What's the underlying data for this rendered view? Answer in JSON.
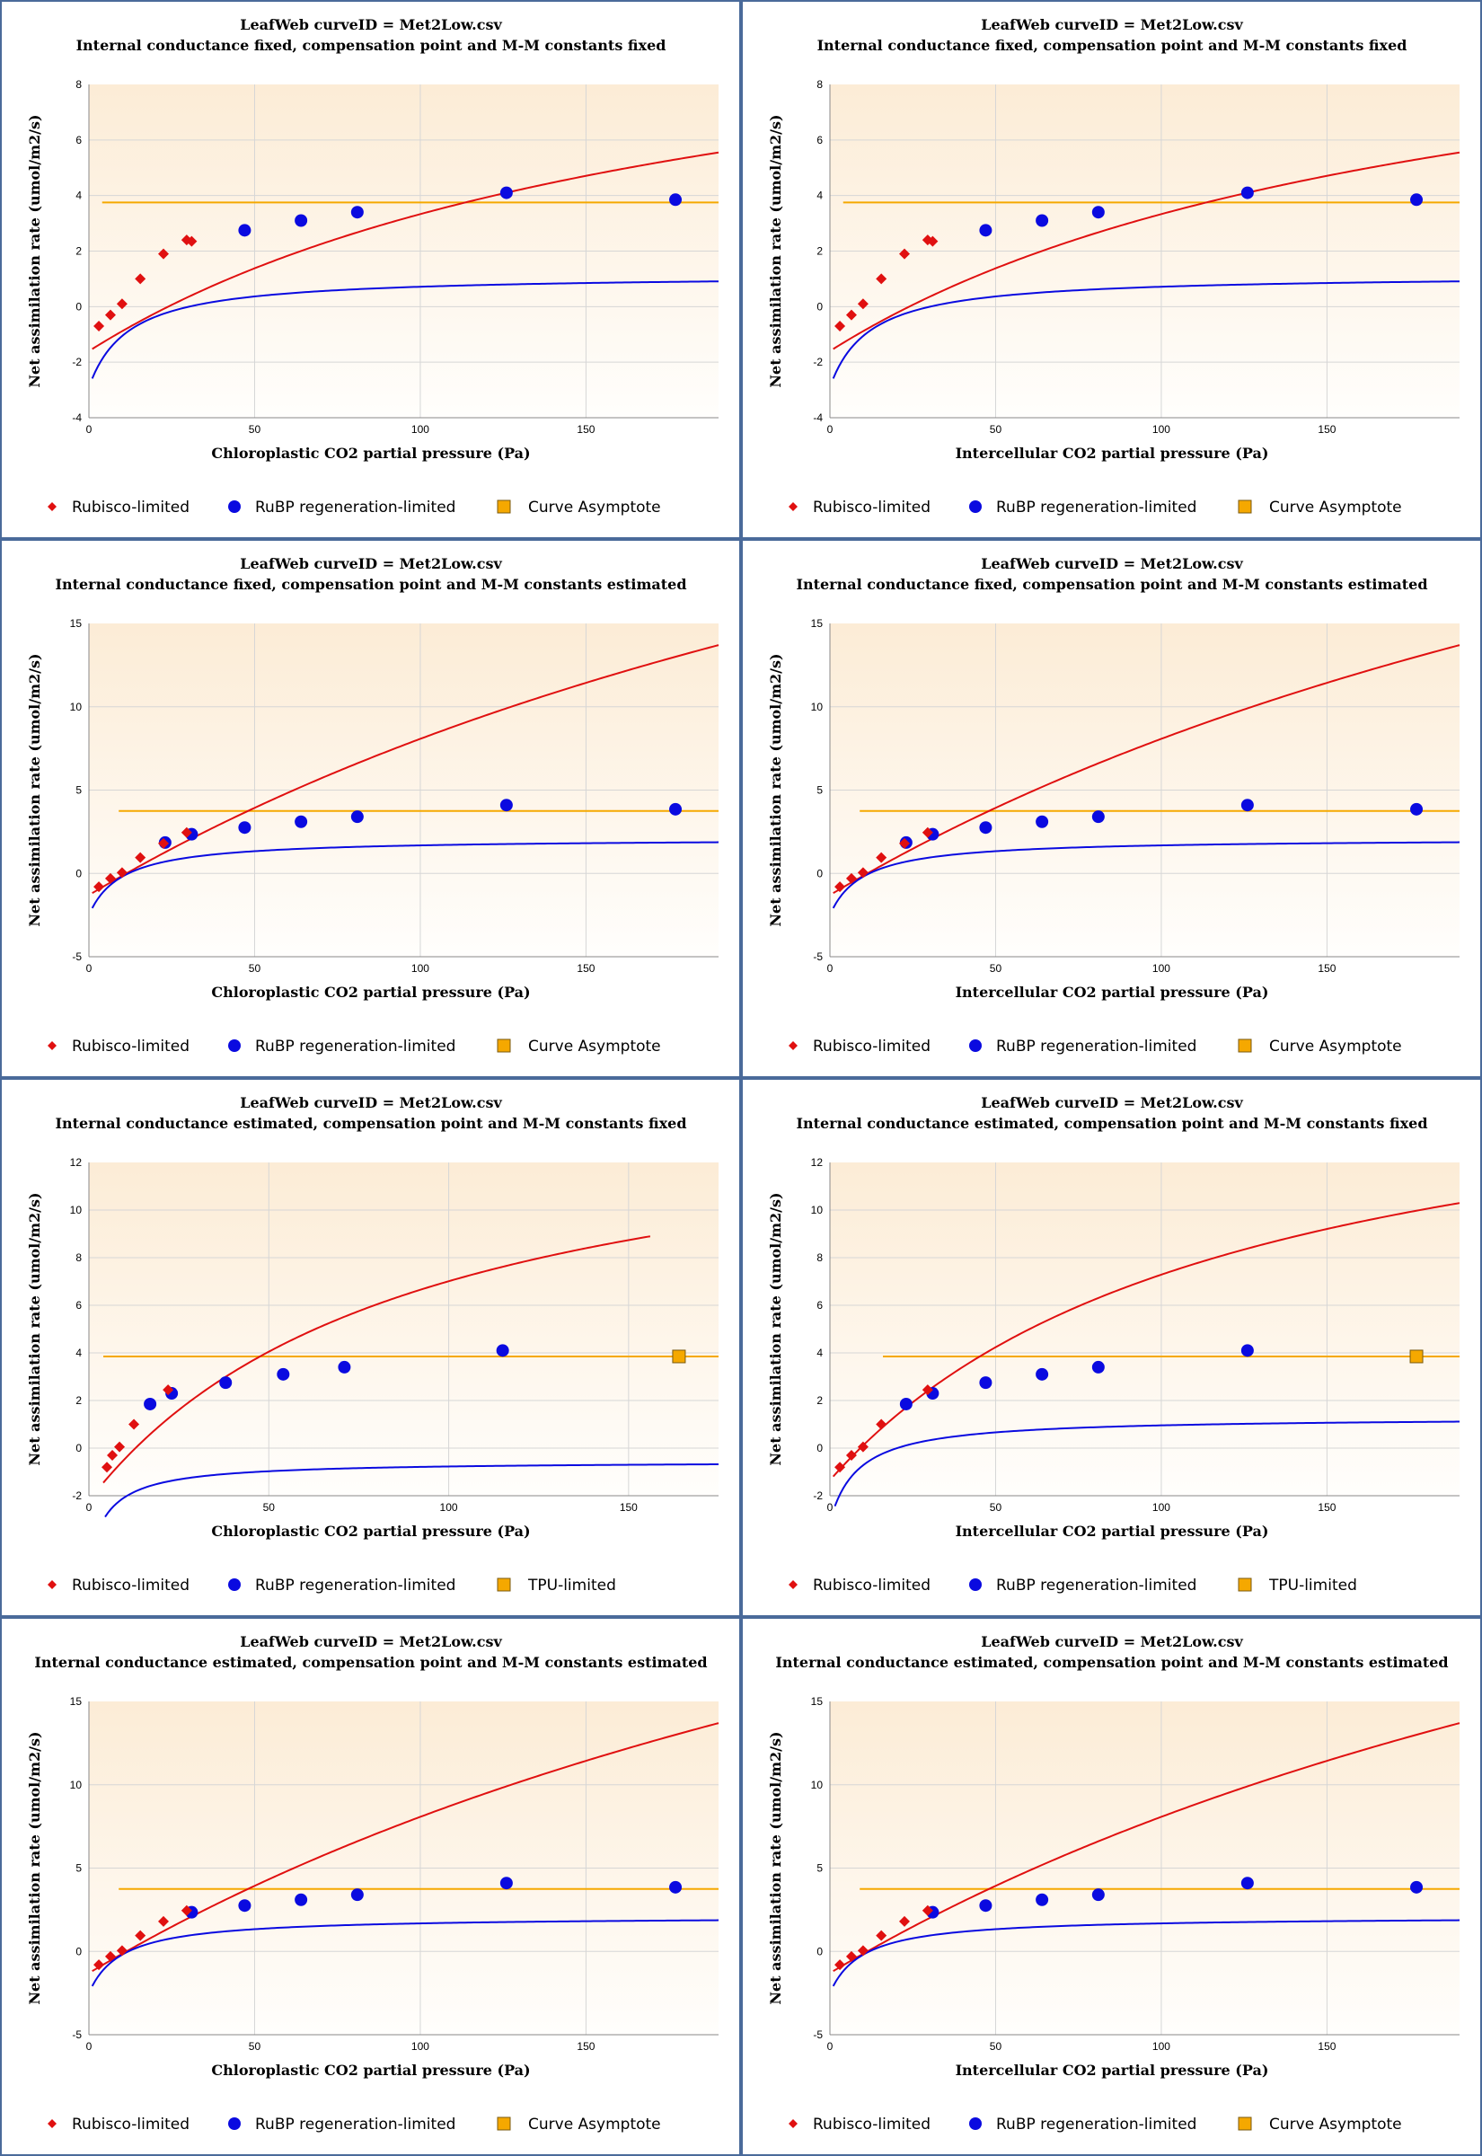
{
  "legend_colors": {
    "rubisco": "#e01010",
    "rubp": "#0a0ae0",
    "tpu": "#f5a800",
    "curve_asymptote": "#f5a800"
  },
  "chart_data": [
    {
      "type": "scatter",
      "title": "LeafWeb curveID = Met2Low.csv",
      "subtitle": "Internal conductance fixed, compensation point and M-M constants fixed",
      "xlabel": "Chloroplastic CO2 partial pressure (Pa)",
      "ylabel": "Net assimilation rate (umol/m2/s)",
      "xlim": [
        0,
        190
      ],
      "ylim": [
        -4,
        8
      ],
      "xticks": [
        0,
        50,
        100,
        150
      ],
      "yticks": [
        -4,
        -2,
        0,
        2,
        4,
        6,
        8
      ],
      "legend": [
        "Rubisco-limited",
        "RuBP regeneration-limited",
        "Curve Asymptote"
      ],
      "series": [
        {
          "name": "Rubisco-limited",
          "points": [
            [
              3,
              -0.7
            ],
            [
              6.5,
              -0.3
            ],
            [
              10,
              0.1
            ],
            [
              15.5,
              1.0
            ],
            [
              22.5,
              1.9
            ],
            [
              29.5,
              2.4
            ],
            [
              31,
              2.35
            ]
          ]
        },
        {
          "name": "RuBP regeneration-limited",
          "points": [
            [
              47,
              2.75
            ],
            [
              64,
              3.1
            ],
            [
              81,
              3.4
            ],
            [
              126,
              4.1
            ],
            [
              177,
              3.85
            ]
          ]
        },
        {
          "name": "Curve Asymptote",
          "value": 3.75,
          "xrange": [
            4,
            190
          ]
        }
      ],
      "curves": {
        "rubisco": {
          "vmax": 14.3,
          "k": 190,
          "rd": 1.6,
          "x0": 1,
          "x1": 190
        },
        "rubp": {
          "jmax": 4.05,
          "k": 12,
          "rd": 2.9,
          "x0": 1,
          "x1": 190
        }
      }
    },
    {
      "type": "scatter",
      "title": "LeafWeb curveID = Met2Low.csv",
      "subtitle": "Internal conductance fixed, compensation point and M-M constants fixed",
      "xlabel": "Intercellular CO2 partial pressure (Pa)",
      "ylabel": "Net assimilation rate (umol/m2/s)",
      "xlim": [
        0,
        190
      ],
      "ylim": [
        -4,
        8
      ],
      "xticks": [
        0,
        50,
        100,
        150
      ],
      "yticks": [
        -4,
        -2,
        0,
        2,
        4,
        6,
        8
      ],
      "legend": [
        "Rubisco-limited",
        "RuBP regeneration-limited",
        "Curve Asymptote"
      ],
      "series": [
        {
          "name": "Rubisco-limited",
          "points": [
            [
              3,
              -0.7
            ],
            [
              6.5,
              -0.3
            ],
            [
              10,
              0.1
            ],
            [
              15.5,
              1.0
            ],
            [
              22.5,
              1.9
            ],
            [
              29.5,
              2.4
            ],
            [
              31,
              2.35
            ]
          ]
        },
        {
          "name": "RuBP regeneration-limited",
          "points": [
            [
              47,
              2.75
            ],
            [
              64,
              3.1
            ],
            [
              81,
              3.4
            ],
            [
              126,
              4.1
            ],
            [
              177,
              3.85
            ]
          ]
        },
        {
          "name": "Curve Asymptote",
          "value": 3.75,
          "xrange": [
            4,
            190
          ]
        }
      ],
      "curves": {
        "rubisco": {
          "vmax": 14.3,
          "k": 190,
          "rd": 1.6,
          "x0": 1,
          "x1": 190
        },
        "rubp": {
          "jmax": 4.05,
          "k": 12,
          "rd": 2.9,
          "x0": 1,
          "x1": 190
        }
      }
    },
    {
      "type": "scatter",
      "title": "LeafWeb curveID = Met2Low.csv",
      "subtitle": "Internal conductance fixed, compensation point and M-M constants estimated",
      "xlabel": "Chloroplastic CO2 partial pressure (Pa)",
      "ylabel": "Net assimilation rate (umol/m2/s)",
      "xlim": [
        0,
        190
      ],
      "ylim": [
        -5,
        15
      ],
      "xticks": [
        0,
        50,
        100,
        150
      ],
      "yticks": [
        -5,
        0,
        5,
        10,
        15
      ],
      "legend": [
        "Rubisco-limited",
        "RuBP regeneration-limited",
        "Curve Asymptote"
      ],
      "series": [
        {
          "name": "Rubisco-limited",
          "points": [
            [
              3,
              -0.8
            ],
            [
              6.5,
              -0.3
            ],
            [
              10,
              0.05
            ],
            [
              15.5,
              0.95
            ],
            [
              22.5,
              1.8
            ],
            [
              29.5,
              2.45
            ]
          ]
        },
        {
          "name": "RuBP regeneration-limited",
          "points": [
            [
              23,
              1.85
            ],
            [
              31,
              2.35
            ],
            [
              47,
              2.75
            ],
            [
              64,
              3.1
            ],
            [
              81,
              3.4
            ],
            [
              126,
              4.1
            ],
            [
              177,
              3.85
            ]
          ]
        },
        {
          "name": "Curve Asymptote",
          "value": 3.75,
          "xrange": [
            9,
            190
          ]
        }
      ],
      "curves": {
        "rubisco": {
          "vmax": 45,
          "k": 380,
          "rd": 1.3,
          "x0": 1,
          "x1": 190
        },
        "rubp": {
          "jmax": 4.6,
          "k": 10,
          "rd": 2.5,
          "x0": 1,
          "x1": 190
        }
      }
    },
    {
      "type": "scatter",
      "title": "LeafWeb curveID = Met2Low.csv",
      "subtitle": "Internal conductance fixed, compensation point and M-M constants estimated",
      "xlabel": "Intercellular CO2 partial pressure (Pa)",
      "ylabel": "Net assimilation rate (umol/m2/s)",
      "xlim": [
        0,
        190
      ],
      "ylim": [
        -5,
        15
      ],
      "xticks": [
        0,
        50,
        100,
        150
      ],
      "yticks": [
        -5,
        0,
        5,
        10,
        15
      ],
      "legend": [
        "Rubisco-limited",
        "RuBP regeneration-limited",
        "Curve Asymptote"
      ],
      "series": [
        {
          "name": "Rubisco-limited",
          "points": [
            [
              3,
              -0.8
            ],
            [
              6.5,
              -0.3
            ],
            [
              10,
              0.05
            ],
            [
              15.5,
              0.95
            ],
            [
              22.5,
              1.8
            ],
            [
              29.5,
              2.45
            ]
          ]
        },
        {
          "name": "RuBP regeneration-limited",
          "points": [
            [
              23,
              1.85
            ],
            [
              31,
              2.35
            ],
            [
              47,
              2.75
            ],
            [
              64,
              3.1
            ],
            [
              81,
              3.4
            ],
            [
              126,
              4.1
            ],
            [
              177,
              3.85
            ]
          ]
        },
        {
          "name": "Curve Asymptote",
          "value": 3.75,
          "xrange": [
            9,
            190
          ]
        }
      ],
      "curves": {
        "rubisco": {
          "vmax": 45,
          "k": 380,
          "rd": 1.3,
          "x0": 1,
          "x1": 190
        },
        "rubp": {
          "jmax": 4.6,
          "k": 10,
          "rd": 2.5,
          "x0": 1,
          "x1": 190
        }
      }
    },
    {
      "type": "scatter",
      "title": "LeafWeb curveID = Met2Low.csv",
      "subtitle": "Internal conductance estimated, compensation point and M-M constants fixed",
      "xlabel": "Chloroplastic CO2 partial pressure (Pa)",
      "ylabel": "Net assimilation rate (umol/m2/s)",
      "xlim": [
        0,
        175
      ],
      "ylim": [
        -2,
        12
      ],
      "xticks": [
        0,
        50,
        100,
        150
      ],
      "yticks": [
        -2,
        0,
        2,
        4,
        6,
        8,
        10,
        12
      ],
      "legend": [
        "Rubisco-limited",
        "RuBP regeneration-limited",
        "TPU-limited"
      ],
      "series": [
        {
          "name": "Rubisco-limited",
          "points": [
            [
              5,
              -0.8
            ],
            [
              6.5,
              -0.3
            ],
            [
              8.5,
              0.05
            ],
            [
              12.5,
              1.0
            ],
            [
              22,
              2.45
            ]
          ]
        },
        {
          "name": "RuBP regeneration-limited",
          "points": [
            [
              17,
              1.85
            ],
            [
              23,
              2.3
            ],
            [
              38,
              2.75
            ],
            [
              54,
              3.1
            ],
            [
              71,
              3.4
            ],
            [
              115,
              4.1
            ]
          ]
        },
        {
          "name": "TPU-limited",
          "points": [
            [
              164,
              3.85
            ]
          ],
          "line": {
            "value": 3.85,
            "xrange": [
              4,
              175
            ]
          }
        }
      ],
      "curves": {
        "rubisco": {
          "vmax": 17.5,
          "k": 90,
          "rd": 2.2,
          "x0": 4,
          "x1": 156
        },
        "rubp": {
          "jmax": 4.25,
          "k": 5.5,
          "rd": 4.8,
          "x0": 4.5,
          "x1": 175
        }
      }
    },
    {
      "type": "scatter",
      "title": "LeafWeb curveID = Met2Low.csv",
      "subtitle": "Internal conductance estimated, compensation point and M-M constants fixed",
      "xlabel": "Intercellular CO2 partial pressure (Pa)",
      "ylabel": "Net assimilation rate (umol/m2/s)",
      "xlim": [
        0,
        190
      ],
      "ylim": [
        -2,
        12
      ],
      "xticks": [
        0,
        50,
        100,
        150
      ],
      "yticks": [
        -2,
        0,
        2,
        4,
        6,
        8,
        10,
        12
      ],
      "legend": [
        "Rubisco-limited",
        "RuBP regeneration-limited",
        "TPU-limited"
      ],
      "series": [
        {
          "name": "Rubisco-limited",
          "points": [
            [
              3,
              -0.8
            ],
            [
              6.5,
              -0.3
            ],
            [
              10,
              0.05
            ],
            [
              15.5,
              1.0
            ],
            [
              29.5,
              2.45
            ]
          ]
        },
        {
          "name": "RuBP regeneration-limited",
          "points": [
            [
              23,
              1.85
            ],
            [
              31,
              2.3
            ],
            [
              47,
              2.75
            ],
            [
              64,
              3.1
            ],
            [
              81,
              3.4
            ],
            [
              126,
              4.1
            ]
          ]
        },
        {
          "name": "TPU-limited",
          "points": [
            [
              177,
              3.85
            ]
          ],
          "line": {
            "value": 3.85,
            "xrange": [
              16,
              190
            ]
          }
        }
      ],
      "curves": {
        "rubisco": {
          "vmax": 19,
          "k": 120,
          "rd": 1.35,
          "x0": 1,
          "x1": 190
        },
        "rubp": {
          "jmax": 4.4,
          "k": 8.5,
          "rd": 3.1,
          "x0": 1.5,
          "x1": 190
        }
      }
    },
    {
      "type": "scatter",
      "title": "LeafWeb curveID = Met2Low.csv",
      "subtitle": "Internal conductance estimated, compensation point and M-M constants estimated",
      "xlabel": "Chloroplastic CO2 partial pressure (Pa)",
      "ylabel": "Net assimilation rate (umol/m2/s)",
      "xlim": [
        0,
        190
      ],
      "ylim": [
        -5,
        15
      ],
      "xticks": [
        0,
        50,
        100,
        150
      ],
      "yticks": [
        -5,
        0,
        5,
        10,
        15
      ],
      "legend": [
        "Rubisco-limited",
        "RuBP regeneration-limited",
        "Curve Asymptote"
      ],
      "series": [
        {
          "name": "Rubisco-limited",
          "points": [
            [
              3,
              -0.8
            ],
            [
              6.5,
              -0.3
            ],
            [
              10,
              0.05
            ],
            [
              15.5,
              0.95
            ],
            [
              22.5,
              1.8
            ],
            [
              29.5,
              2.45
            ]
          ]
        },
        {
          "name": "RuBP regeneration-limited",
          "points": [
            [
              31,
              2.35
            ],
            [
              47,
              2.75
            ],
            [
              64,
              3.1
            ],
            [
              81,
              3.4
            ],
            [
              126,
              4.1
            ],
            [
              177,
              3.85
            ]
          ]
        },
        {
          "name": "Curve Asymptote",
          "value": 3.75,
          "xrange": [
            9,
            190
          ]
        }
      ],
      "curves": {
        "rubisco": {
          "vmax": 45,
          "k": 380,
          "rd": 1.3,
          "x0": 1,
          "x1": 190
        },
        "rubp": {
          "jmax": 4.6,
          "k": 10,
          "rd": 2.5,
          "x0": 1,
          "x1": 190
        }
      }
    },
    {
      "type": "scatter",
      "title": "LeafWeb curveID = Met2Low.csv",
      "subtitle": "Internal conductance estimated, compensation point and M-M constants estimated",
      "xlabel": "Intercellular CO2 partial pressure (Pa)",
      "ylabel": "Net assimilation rate (umol/m2/s)",
      "xlim": [
        0,
        190
      ],
      "ylim": [
        -5,
        15
      ],
      "xticks": [
        0,
        50,
        100,
        150
      ],
      "yticks": [
        -5,
        0,
        5,
        10,
        15
      ],
      "legend": [
        "Rubisco-limited",
        "RuBP regeneration-limited",
        "Curve Asymptote"
      ],
      "series": [
        {
          "name": "Rubisco-limited",
          "points": [
            [
              3,
              -0.8
            ],
            [
              6.5,
              -0.3
            ],
            [
              10,
              0.05
            ],
            [
              15.5,
              0.95
            ],
            [
              22.5,
              1.8
            ],
            [
              29.5,
              2.45
            ]
          ]
        },
        {
          "name": "RuBP regeneration-limited",
          "points": [
            [
              31,
              2.35
            ],
            [
              47,
              2.75
            ],
            [
              64,
              3.1
            ],
            [
              81,
              3.4
            ],
            [
              126,
              4.1
            ],
            [
              177,
              3.85
            ]
          ]
        },
        {
          "name": "Curve Asymptote",
          "value": 3.75,
          "xrange": [
            9,
            190
          ]
        }
      ],
      "curves": {
        "rubisco": {
          "vmax": 45,
          "k": 380,
          "rd": 1.3,
          "x0": 1,
          "x1": 190
        },
        "rubp": {
          "jmax": 4.6,
          "k": 10,
          "rd": 2.5,
          "x0": 1,
          "x1": 190
        }
      }
    }
  ]
}
